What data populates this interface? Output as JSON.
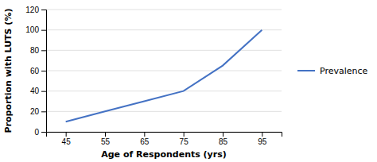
{
  "chart_data": {
    "type": "line",
    "x": [
      45,
      55,
      65,
      75,
      85,
      95
    ],
    "series": [
      {
        "name": "Prevalence",
        "color": "#4472C4",
        "values": [
          10,
          20,
          30,
          40,
          65,
          100
        ]
      }
    ],
    "xlabel": "Age of Respondents (yrs)",
    "ylabel": "Proportion with LUTS (%)",
    "xlim": [
      40,
      100
    ],
    "ylim": [
      0,
      120
    ],
    "xticks": [
      45,
      55,
      65,
      75,
      85,
      95
    ],
    "yticks": [
      0,
      20,
      40,
      60,
      80,
      100,
      120
    ],
    "grid": "y",
    "legend": "right"
  }
}
